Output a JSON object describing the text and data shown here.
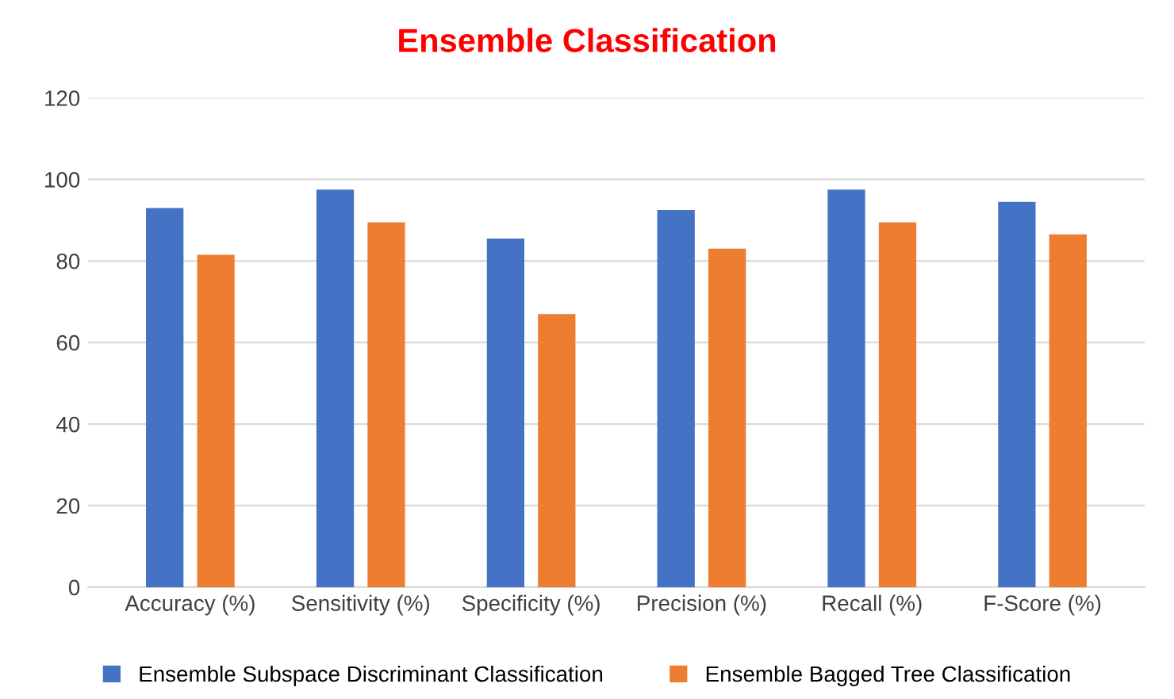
{
  "chart_data": {
    "type": "bar",
    "title": "Ensemble Classification",
    "categories": [
      "Accuracy (%)",
      "Sensitivity (%)",
      "Specificity (%)",
      "Precision (%)",
      "Recall (%)",
      "F-Score (%)"
    ],
    "series": [
      {
        "name": "Ensemble Subspace Discriminant Classification",
        "color": "#4472c4",
        "values": [
          93,
          97.5,
          85.5,
          92.5,
          97.5,
          94.5
        ]
      },
      {
        "name": "Ensemble Bagged Tree Classification",
        "color": "#ed7d31",
        "values": [
          81.5,
          89.5,
          67,
          83,
          89.5,
          86.5
        ]
      }
    ],
    "ylim": [
      0,
      120
    ],
    "yticks": [
      0,
      20,
      40,
      60,
      80,
      100,
      120
    ],
    "grid": "y",
    "legend": "bottom"
  }
}
